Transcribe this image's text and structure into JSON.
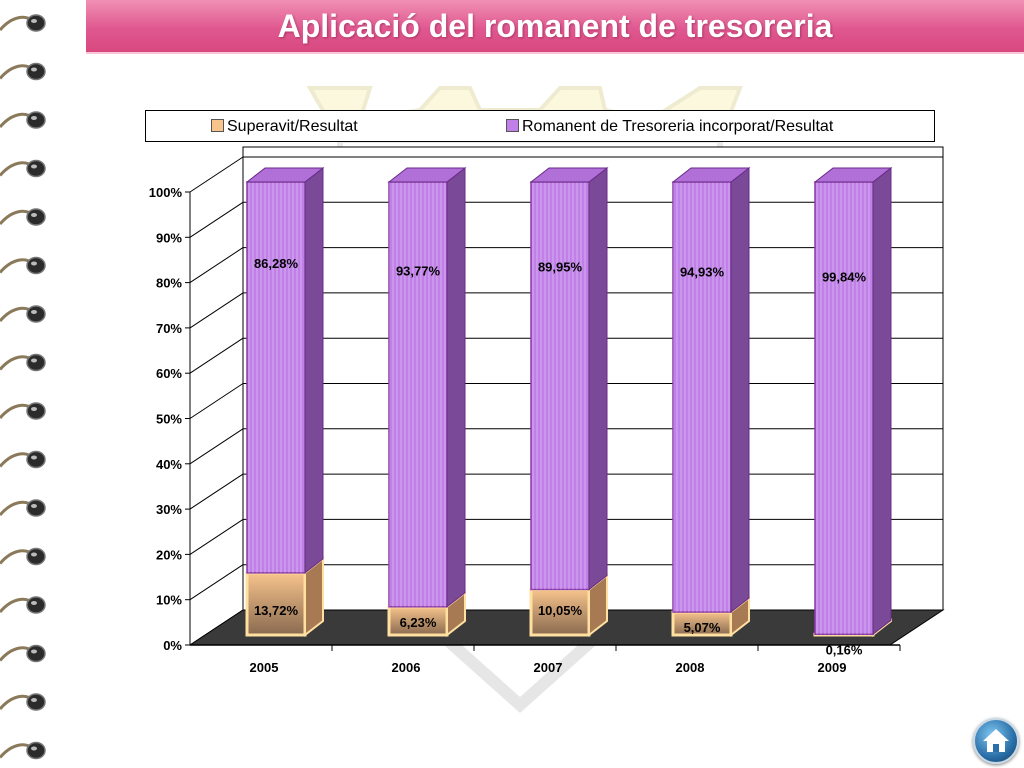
{
  "title": "Aplicació del romanent de tresoreria",
  "colors": {
    "title_bar": "#e05890",
    "surplus": "#f7c48c",
    "remnant": "#c080e8"
  },
  "icons": {
    "binding": "spiral-binding-icon",
    "home": "home-icon",
    "watermark": "coat-of-arms-watermark"
  },
  "chart_data": {
    "type": "bar",
    "stacked": true,
    "percent": true,
    "three_d": true,
    "categories": [
      "2005",
      "2006",
      "2007",
      "2008",
      "2009"
    ],
    "series": [
      {
        "name": "Superavit/Resultat",
        "values": [
          13.72,
          6.23,
          10.05,
          5.07,
          0.16
        ],
        "labels": [
          "13,72%",
          "6,23%",
          "10,05%",
          "5,07%",
          "0,16%"
        ],
        "color": "#f7c48c"
      },
      {
        "name": "Romanent de Tresoreria incorporat/Resultat",
        "values": [
          86.28,
          93.77,
          89.95,
          94.93,
          99.84
        ],
        "labels": [
          "86,28%",
          "93,77%",
          "89,95%",
          "94,93%",
          "99,84%"
        ],
        "color": "#c080e8"
      }
    ],
    "y_ticks": [
      "0%",
      "10%",
      "20%",
      "30%",
      "40%",
      "50%",
      "60%",
      "70%",
      "80%",
      "90%",
      "100%"
    ],
    "ylim": [
      0,
      100
    ],
    "grid": true,
    "legend_position": "top"
  }
}
